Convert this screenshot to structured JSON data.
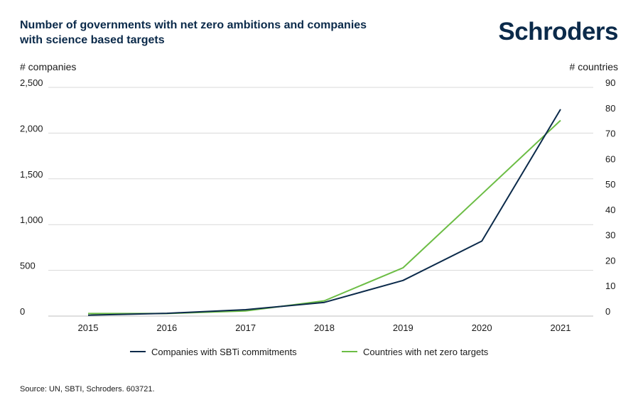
{
  "logo_text": "Schroders",
  "source": "Source: UN, SBTI, Schroders. 603721.",
  "chart_data": {
    "type": "line",
    "title_lines": [
      "Number of governments with net zero ambitions and companies",
      "with science based targets"
    ],
    "ylabel_left": "# companies",
    "ylabel_right": "# countries",
    "x": [
      "2015",
      "2016",
      "2017",
      "2018",
      "2019",
      "2020",
      "2021"
    ],
    "ylim_left": [
      0,
      2500
    ],
    "ylim_right": [
      0,
      90
    ],
    "yticks_left": [
      "0",
      "500",
      "1,000",
      "1,500",
      "2,000",
      "2,500"
    ],
    "yticks_right": [
      "0",
      "10",
      "20",
      "30",
      "40",
      "50",
      "60",
      "70",
      "80",
      "90"
    ],
    "grid": true,
    "legend_position": "bottom",
    "series": [
      {
        "name": "Companies with SBTi commitments",
        "axis": "left",
        "color": "#0b2a4a",
        "values": [
          10,
          30,
          70,
          150,
          390,
          820,
          2260
        ]
      },
      {
        "name": "Countries with net zero targets",
        "axis": "right",
        "color": "#6cbd45",
        "values": [
          1,
          1,
          2,
          6,
          19,
          48,
          77
        ]
      }
    ]
  }
}
